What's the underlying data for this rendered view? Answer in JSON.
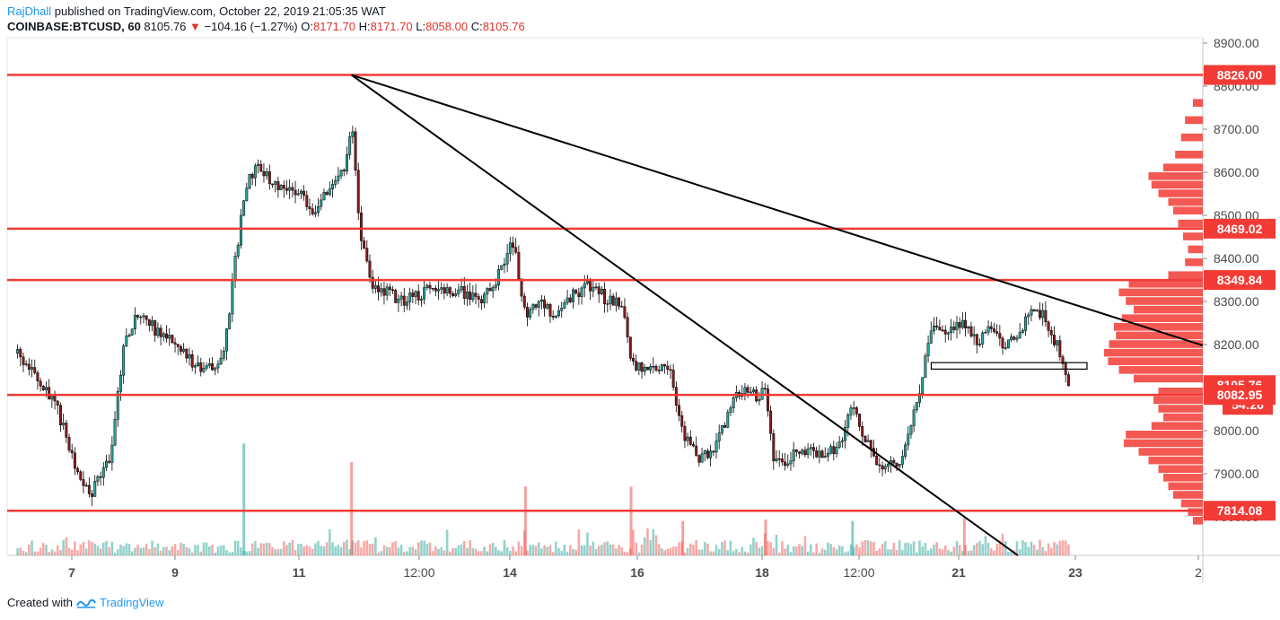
{
  "header": {
    "author": "RajDhall",
    "published": "published on TradingView.com, October 22, 2019 21:05:35 WAT",
    "symbol": "COINBASE:BTCUSD, 60",
    "last": "8105.76",
    "change": "−104.16 (−1.27%)",
    "o_label": "O:",
    "o_value": "8171.70",
    "h_label": "H:",
    "h_value": "8171.70",
    "l_label": "L:",
    "l_value": "8058.00",
    "c_label": "C:",
    "c_value": "8105.76"
  },
  "footer": {
    "created_with": "Created with",
    "brand": "TradingView"
  },
  "colors": {
    "up": "#26a69a",
    "down": "#ef5350",
    "level": "#f23b35",
    "vp": "#f23b35",
    "trend": "#000000",
    "text": "#131722"
  },
  "chart_data": {
    "type": "candlestick",
    "title": "",
    "timeframe": "60",
    "ylim": [
      7720,
      8960
    ],
    "y_ticks": [
      "8900.00",
      "8800.00",
      "8700.00",
      "8600.00",
      "8500.00",
      "8400.00",
      "8300.00",
      "8200.00",
      "8100.00",
      "8000.00",
      "7900.00",
      "7800.00"
    ],
    "x_ticks": [
      "7",
      "9",
      "11",
      "12:00",
      "14",
      "16",
      "18",
      "12:00",
      "21",
      "23",
      "2"
    ],
    "horizontal_levels": [
      8826.0,
      8469.02,
      8349.84,
      8082.95,
      7814.08
    ],
    "price_labels": [
      "8826.00",
      "8469.02",
      "8349.84",
      "8105.76",
      "54:26",
      "8082.95",
      "7814.08"
    ],
    "last_price": 8105.76,
    "countdown": "54:26",
    "trendlines": [
      {
        "from": [
          "11",
          8826
        ],
        "to": [
          "edge",
          8198
        ]
      },
      {
        "from": [
          "11",
          8826
        ],
        "to": [
          "22",
          7720
        ]
      }
    ],
    "price_path": [
      [
        0,
        8180
      ],
      [
        0.5,
        8120
      ],
      [
        1,
        8050
      ],
      [
        1.4,
        7920
      ],
      [
        1.8,
        7850
      ],
      [
        2.3,
        7950
      ],
      [
        2.6,
        8200
      ],
      [
        3,
        8280
      ],
      [
        3.4,
        8230
      ],
      [
        3.8,
        8210
      ],
      [
        4.2,
        8160
      ],
      [
        4.6,
        8140
      ],
      [
        5,
        8170
      ],
      [
        5.5,
        8550
      ],
      [
        5.8,
        8620
      ],
      [
        6.3,
        8570
      ],
      [
        6.8,
        8560
      ],
      [
        7.2,
        8510
      ],
      [
        7.6,
        8570
      ],
      [
        7.9,
        8600
      ],
      [
        8.1,
        8720
      ],
      [
        8.3,
        8450
      ],
      [
        8.6,
        8330
      ],
      [
        9,
        8320
      ],
      [
        9.4,
        8300
      ],
      [
        9.8,
        8320
      ],
      [
        10.3,
        8330
      ],
      [
        10.8,
        8320
      ],
      [
        11.3,
        8310
      ],
      [
        11.7,
        8370
      ],
      [
        12,
        8440
      ],
      [
        12.3,
        8270
      ],
      [
        12.7,
        8290
      ],
      [
        13.1,
        8270
      ],
      [
        13.5,
        8320
      ],
      [
        13.9,
        8340
      ],
      [
        14.3,
        8300
      ],
      [
        14.6,
        8300
      ],
      [
        14.9,
        8150
      ],
      [
        15.3,
        8150
      ],
      [
        15.8,
        8140
      ],
      [
        16.1,
        7990
      ],
      [
        16.5,
        7930
      ],
      [
        16.9,
        7960
      ],
      [
        17.4,
        8090
      ],
      [
        17.9,
        8080
      ],
      [
        18.1,
        8090
      ],
      [
        18.3,
        7920
      ],
      [
        18.7,
        7940
      ],
      [
        19.1,
        7950
      ],
      [
        19.5,
        7940
      ],
      [
        19.9,
        7960
      ],
      [
        20.2,
        8060
      ],
      [
        20.6,
        7960
      ],
      [
        20.9,
        7920
      ],
      [
        21.3,
        7920
      ],
      [
        21.6,
        8000
      ],
      [
        21.8,
        8090
      ],
      [
        22.1,
        8230
      ],
      [
        22.5,
        8240
      ],
      [
        22.9,
        8250
      ],
      [
        23.2,
        8210
      ],
      [
        23.5,
        8230
      ],
      [
        23.9,
        8200
      ],
      [
        24.2,
        8220
      ],
      [
        24.6,
        8290
      ],
      [
        24.9,
        8250
      ],
      [
        25.2,
        8180
      ],
      [
        25.45,
        8105.76
      ]
    ],
    "volume_spikes": [
      {
        "x": 5.5,
        "v": 7.8,
        "dir": "up"
      },
      {
        "x": 8.1,
        "v": 6.5,
        "dir": "down"
      },
      {
        "x": 12.3,
        "v": 4.8,
        "dir": "down"
      },
      {
        "x": 14.85,
        "v": 4.8,
        "dir": "down"
      },
      {
        "x": 16.1,
        "v": 2.4,
        "dir": "down"
      },
      {
        "x": 18.1,
        "v": 2.5,
        "dir": "down"
      },
      {
        "x": 20.2,
        "v": 2.4,
        "dir": "up"
      },
      {
        "x": 22.9,
        "v": 2.6,
        "dir": "down"
      }
    ],
    "volume_profile_bins": [
      [
        8760,
        0.1
      ],
      [
        8720,
        0.18
      ],
      [
        8680,
        0.22
      ],
      [
        8640,
        0.28
      ],
      [
        8610,
        0.4
      ],
      [
        8590,
        0.55
      ],
      [
        8570,
        0.52
      ],
      [
        8550,
        0.45
      ],
      [
        8530,
        0.35
      ],
      [
        8510,
        0.3
      ],
      [
        8480,
        0.25
      ],
      [
        8450,
        0.2
      ],
      [
        8420,
        0.15
      ],
      [
        8390,
        0.18
      ],
      [
        8360,
        0.35
      ],
      [
        8340,
        0.75
      ],
      [
        8320,
        0.85
      ],
      [
        8300,
        0.78
      ],
      [
        8280,
        0.7
      ],
      [
        8260,
        0.82
      ],
      [
        8240,
        0.9
      ],
      [
        8220,
        0.88
      ],
      [
        8200,
        0.95
      ],
      [
        8180,
        1.0
      ],
      [
        8160,
        0.96
      ],
      [
        8140,
        0.85
      ],
      [
        8120,
        0.7
      ],
      [
        8090,
        0.45
      ],
      [
        8070,
        0.5
      ],
      [
        8050,
        0.45
      ],
      [
        8030,
        0.4
      ],
      [
        8010,
        0.52
      ],
      [
        7990,
        0.78
      ],
      [
        7970,
        0.8
      ],
      [
        7950,
        0.65
      ],
      [
        7930,
        0.55
      ],
      [
        7910,
        0.45
      ],
      [
        7890,
        0.4
      ],
      [
        7870,
        0.35
      ],
      [
        7850,
        0.3
      ],
      [
        7830,
        0.22
      ],
      [
        7810,
        0.15
      ],
      [
        7790,
        0.1
      ]
    ]
  }
}
